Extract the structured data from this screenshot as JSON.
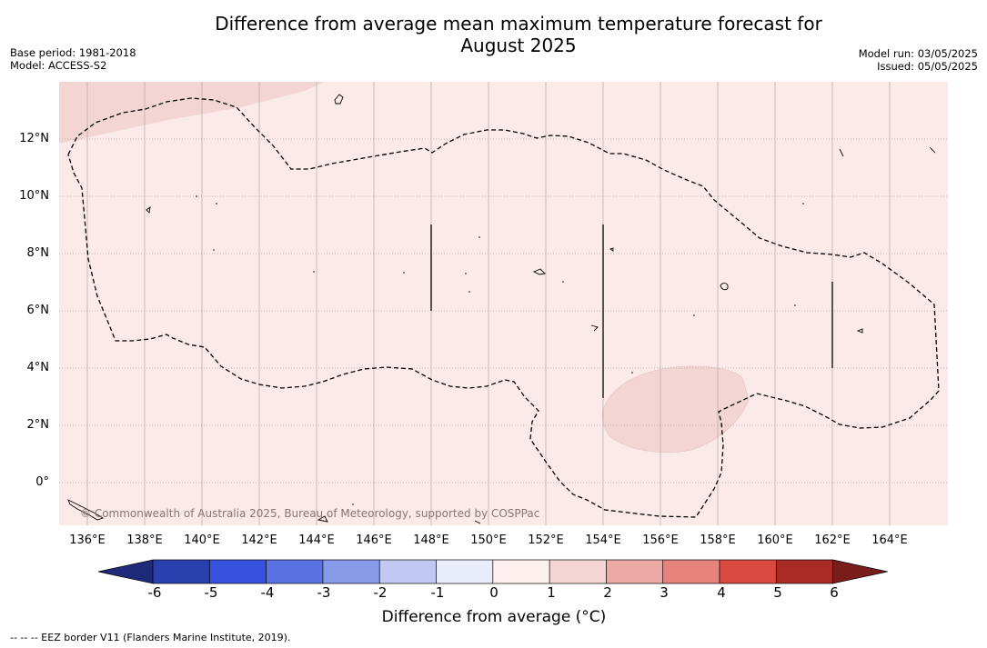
{
  "title_line1": "Difference from average mean maximum temperature forecast for",
  "title_line2": "August 2025",
  "base_period": "Base period: 1981-2018",
  "model": "Model: ACCESS-S2",
  "model_run": "Model run: 03/05/2025",
  "issued": "Issued: 05/05/2025",
  "copyright": "© Commonwealth of Australia 2025, Bureau of Meteorology, supported by COSPPac",
  "lat_labels": [
    "12°N",
    "10°N",
    "8°N",
    "6°N",
    "4°N",
    "2°N",
    "0°"
  ],
  "lon_labels": [
    "136°E",
    "138°E",
    "140°E",
    "142°E",
    "144°E",
    "146°E",
    "148°E",
    "150°E",
    "152°E",
    "154°E",
    "156°E",
    "158°E",
    "160°E",
    "162°E",
    "164°E"
  ],
  "map_background_color": "#fbeae8",
  "anomaly_1_2_color": "#f3d6d4",
  "colorbar": {
    "title": "Difference from average (°C)",
    "ticks": [
      "-6",
      "-5",
      "-4",
      "-3",
      "-2",
      "-1",
      "0",
      "1",
      "2",
      "3",
      "4",
      "5",
      "6"
    ],
    "colors": [
      "#1d2b78",
      "#2a3fae",
      "#3551dd",
      "#5a72e2",
      "#8899e8",
      "#c1c8f2",
      "#e9ecfb",
      "#fdf0ef",
      "#f3d6d4",
      "#ecaaa5",
      "#e5837c",
      "#d9493f",
      "#aa2b26",
      "#791d1a"
    ]
  },
  "footnote": "-- -- -- EEZ border V11 (Flanders Marine Institute, 2019)."
}
